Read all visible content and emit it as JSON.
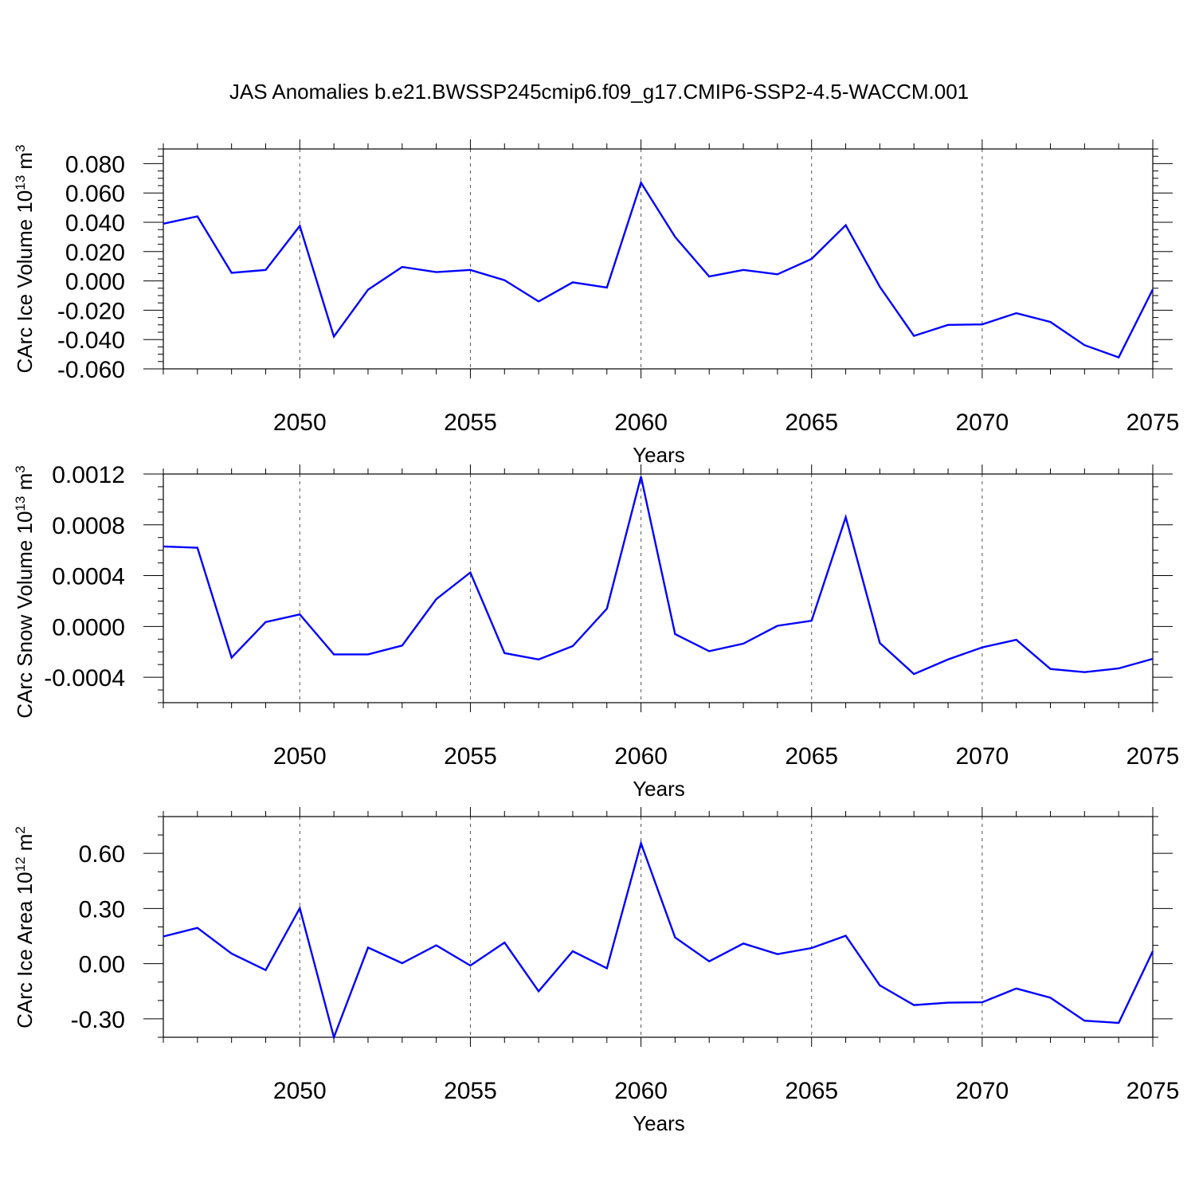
{
  "title": "JAS Anomalies b.e21.BWSSP245cmip6.f09_g17.CMIP6-SSP2-4.5-WACCM.001",
  "line_color": "#0000ff",
  "chart_data": [
    {
      "type": "line",
      "ylabel": "CArc Ice Volume 10",
      "ylabel_exp": "13",
      "ylabel_unit": " m",
      "ylabel_unit_exp": "3",
      "xlabel": "Years",
      "xlim": [
        2046,
        2075
      ],
      "ylim": [
        -0.06,
        0.09
      ],
      "yticks": [
        -0.06,
        -0.04,
        -0.02,
        0.0,
        0.02,
        0.04,
        0.06,
        0.08
      ],
      "ytick_labels": [
        "-0.060",
        "-0.040",
        "-0.020",
        "0.000",
        "0.020",
        "0.040",
        "0.060",
        "0.080"
      ],
      "yminor": 0.005,
      "xticks": [
        2050,
        2055,
        2060,
        2065,
        2070,
        2075
      ],
      "xtick_labels": [
        "2050",
        "2055",
        "2060",
        "2065",
        "2070",
        "2075"
      ],
      "x": [
        2046,
        2047,
        2048,
        2049,
        2050,
        2051,
        2052,
        2053,
        2054,
        2055,
        2056,
        2057,
        2058,
        2059,
        2060,
        2061,
        2062,
        2063,
        2064,
        2065,
        2066,
        2067,
        2068,
        2069,
        2070,
        2071,
        2072,
        2073,
        2074,
        2075
      ],
      "series": [
        {
          "values": [
            0.039,
            0.044,
            0.0055,
            0.0075,
            0.0375,
            -0.038,
            -0.006,
            0.0095,
            0.006,
            0.0075,
            0.0005,
            -0.014,
            -0.001,
            -0.0045,
            0.067,
            0.03,
            0.003,
            0.0075,
            0.0045,
            0.015,
            0.038,
            -0.004,
            -0.0375,
            -0.03,
            -0.0297,
            -0.022,
            -0.028,
            -0.0438,
            -0.0522,
            -0.0058
          ]
        }
      ]
    },
    {
      "type": "line",
      "ylabel": "CArc Snow Volume 10",
      "ylabel_exp": "13",
      "ylabel_unit": " m",
      "ylabel_unit_exp": "3",
      "xlabel": "Years",
      "xlim": [
        2046,
        2075
      ],
      "ylim": [
        -0.0006,
        0.0012
      ],
      "yticks": [
        -0.0004,
        0.0,
        0.0004,
        0.0008,
        0.0012
      ],
      "ytick_labels": [
        "-0.0004",
        "0.0000",
        "0.0004",
        "0.0008",
        "0.0012"
      ],
      "yminor": 0.0001,
      "xticks": [
        2050,
        2055,
        2060,
        2065,
        2070,
        2075
      ],
      "xtick_labels": [
        "2050",
        "2055",
        "2060",
        "2065",
        "2070",
        "2075"
      ],
      "x": [
        2046,
        2047,
        2048,
        2049,
        2050,
        2051,
        2052,
        2053,
        2054,
        2055,
        2056,
        2057,
        2058,
        2059,
        2060,
        2061,
        2062,
        2063,
        2064,
        2065,
        2066,
        2067,
        2068,
        2069,
        2070,
        2071,
        2072,
        2073,
        2074,
        2075
      ],
      "series": [
        {
          "values": [
            0.00063,
            0.00062,
            -0.000245,
            3.5e-05,
            9.5e-05,
            -0.00022,
            -0.00022,
            -0.00015,
            0.000215,
            0.000425,
            -0.00021,
            -0.00026,
            -0.000155,
            0.00014,
            0.00118,
            -6e-05,
            -0.000195,
            -0.000135,
            5e-06,
            4.5e-05,
            0.00086,
            -0.00013,
            -0.000375,
            -0.00026,
            -0.000165,
            -0.000105,
            -0.000335,
            -0.00036,
            -0.00033,
            -0.000255
          ]
        }
      ]
    },
    {
      "type": "line",
      "ylabel": "CArc Ice Area 10",
      "ylabel_exp": "12",
      "ylabel_unit": " m",
      "ylabel_unit_exp": "2",
      "xlabel": "Years",
      "xlim": [
        2046,
        2075
      ],
      "ylim": [
        -0.4,
        0.8
      ],
      "yticks": [
        -0.3,
        0.0,
        0.3,
        0.6
      ],
      "ytick_labels": [
        "-0.30",
        "0.00",
        "0.30",
        "0.60"
      ],
      "yminor": 0.1,
      "xticks": [
        2050,
        2055,
        2060,
        2065,
        2070,
        2075
      ],
      "xtick_labels": [
        "2050",
        "2055",
        "2060",
        "2065",
        "2070",
        "2075"
      ],
      "x": [
        2046,
        2047,
        2048,
        2049,
        2050,
        2051,
        2052,
        2053,
        2054,
        2055,
        2056,
        2057,
        2058,
        2059,
        2060,
        2061,
        2062,
        2063,
        2064,
        2065,
        2066,
        2067,
        2068,
        2069,
        2070,
        2071,
        2072,
        2073,
        2074,
        2075
      ],
      "series": [
        {
          "values": [
            0.148,
            0.195,
            0.055,
            -0.035,
            0.302,
            -0.4,
            0.088,
            0.003,
            0.1,
            -0.01,
            0.115,
            -0.15,
            0.068,
            -0.025,
            0.655,
            0.143,
            0.013,
            0.11,
            0.052,
            0.085,
            0.152,
            -0.118,
            -0.225,
            -0.212,
            -0.21,
            -0.135,
            -0.185,
            -0.31,
            -0.322,
            0.068
          ]
        }
      ]
    }
  ]
}
